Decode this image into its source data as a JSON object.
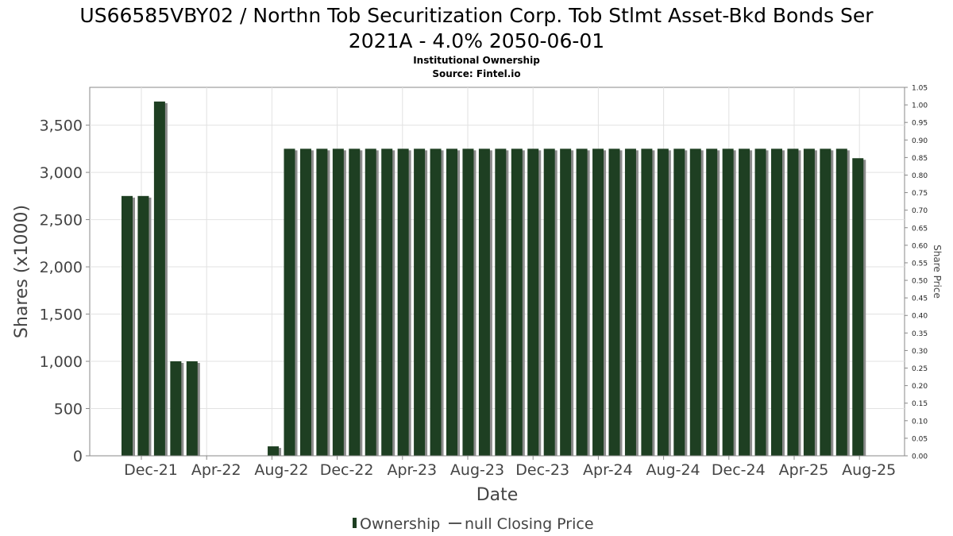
{
  "chart_data": {
    "type": "bar",
    "title": "US66585VBY02 / Northn Tob Securitization Corp. Tob Stlmt Asset-Bkd Bonds Ser 2021A - 4.0% 2050-06-01",
    "title_lines": [
      "US66585VBY02 / Northn Tob Securitization Corp. Tob Stlmt Asset-Bkd Bonds Ser",
      "2021A - 4.0% 2050-06-01"
    ],
    "subtitle": "Institutional Ownership",
    "source": "Source: Fintel.io",
    "xlabel": "Date",
    "ylabel": "Shares (x1000)",
    "y2label": "Share Price",
    "ylim": [
      0,
      3900
    ],
    "y2lim": [
      0,
      1.05
    ],
    "yticks": [
      0,
      500,
      1000,
      1500,
      2000,
      2500,
      3000,
      3500
    ],
    "yticklabels": [
      "0",
      "500",
      "1,000",
      "1,500",
      "2,000",
      "2,500",
      "3,000",
      "3,500"
    ],
    "y2ticklabels": [
      "0.00",
      "0.05",
      "0.10",
      "0.15",
      "0.20",
      "0.25",
      "0.30",
      "0.35",
      "0.40",
      "0.45",
      "0.50",
      "0.55",
      "0.60",
      "0.65",
      "0.70",
      "0.75",
      "0.80",
      "0.85",
      "0.90",
      "0.95",
      "1.00",
      "1.05"
    ],
    "xticklabels": [
      "Dec-21",
      "Apr-22",
      "Aug-22",
      "Dec-22",
      "Apr-23",
      "Aug-23",
      "Dec-23",
      "Apr-24",
      "Aug-24",
      "Dec-24",
      "Apr-25",
      "Aug-25"
    ],
    "grid": true,
    "legend_placement": "bottom-center",
    "series": [
      {
        "name": "Ownership",
        "color": "#1e3f22",
        "values": [
          2750,
          2750,
          3750,
          1000,
          1000,
          0,
          0,
          0,
          0,
          100,
          3250,
          3250,
          3250,
          3250,
          3250,
          3250,
          3250,
          3250,
          3250,
          3250,
          3250,
          3250,
          3250,
          3250,
          3250,
          3250,
          3250,
          3250,
          3250,
          3250,
          3250,
          3250,
          3250,
          3250,
          3250,
          3250,
          3250,
          3250,
          3250,
          3250,
          3250,
          3250,
          3250,
          3250,
          3250,
          3150
        ]
      }
    ],
    "legend": [
      {
        "label": "Ownership",
        "kind": "bar",
        "color": "#1e3f22"
      },
      {
        "label": "null Closing Price",
        "kind": "line",
        "color": "#555555"
      }
    ]
  }
}
